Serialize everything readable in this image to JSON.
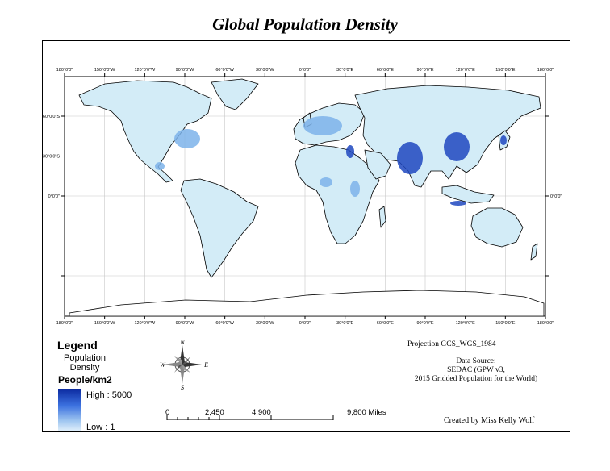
{
  "title": "Global Population Density",
  "graticule": {
    "lon_labels": [
      "180°0'0\"",
      "150°0'0\"W",
      "120°0'0\"W",
      "90°0'0\"W",
      "60°0'0\"W",
      "30°0'0\"W",
      "0°0'0\"",
      "30°0'0\"E",
      "60°0'0\"E",
      "90°0'0\"E",
      "120°0'0\"E",
      "150°0'0\"E",
      "180°0'0\""
    ],
    "lat_left_labels": [
      "0°0'0\"",
      "30°0'0\"S",
      "60°0'0\"S"
    ],
    "lat_right_labels": [
      "0°0'0\""
    ]
  },
  "legend": {
    "heading": "Legend",
    "layer": "Population Density",
    "unit": "People/km2",
    "high_label": "High : 5000",
    "low_label": "Low : 1",
    "colors": {
      "high": "#0b2aa0",
      "mid": "#3d72e0",
      "low": "#e3f1fb"
    }
  },
  "compass": {
    "n": "N",
    "s": "S",
    "e": "E",
    "w": "W"
  },
  "scalebar": {
    "labels": [
      "0",
      "2,450",
      "4,900",
      "9,800 Miles"
    ]
  },
  "projection": "Projection GCS_WGS_1984",
  "source": {
    "line1": "Data Source:",
    "line2": "SEDAC (GPW v3,",
    "line3": "2015 Gridded Population for the World)"
  },
  "credit": "Created by Miss Kelly Wolf",
  "colors": {
    "land_light": "#d3ecf7",
    "land_mid": "#7db3ea",
    "land_dense": "#1f48c0",
    "outline": "#000000"
  }
}
